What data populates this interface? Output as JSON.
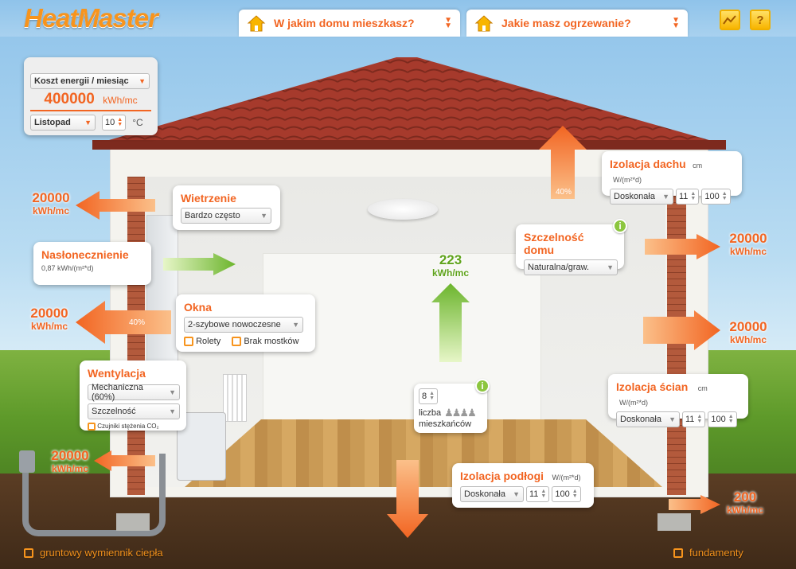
{
  "app": {
    "logo_part1": "Heat",
    "logo_part2": "Master"
  },
  "tabs": [
    {
      "label": "W jakim domu mieszkasz?"
    },
    {
      "label": "Jakie masz ogrzewanie?"
    }
  ],
  "energy": {
    "mode": "Koszt energii / miesiąc",
    "value": "400000",
    "unit": "kWh/mc",
    "month": "Listopad",
    "temp": "10",
    "temp_unit": "°C"
  },
  "ventilation_airing": {
    "title": "Wietrzenie",
    "value": "Bardzo często"
  },
  "insolation": {
    "title": "Nasłonecznienie",
    "value": "0,87 kWh/(m²*d)"
  },
  "windows": {
    "title": "Okna",
    "value": "2-szybowe nowoczesne",
    "opt1": "Rolety",
    "opt2": "Brak mostków"
  },
  "mech_vent": {
    "title": "Wentylacja",
    "type": "Mechaniczna (60%)",
    "tightness": "Szczelność",
    "sensor": "Czujniki stężenia CO₂"
  },
  "airtight": {
    "title": "Szczelność domu",
    "value": "Naturalna/graw."
  },
  "roof": {
    "title": "Izolacja dachu",
    "unit_cm": "cm",
    "unit_w": "W/(m²*d)",
    "quality": "Doskonała",
    "cm": "11",
    "w": "100",
    "loss_pct": "40%"
  },
  "walls": {
    "title": "Izolacja ścian",
    "unit_cm": "cm",
    "unit_w": "W/(m²*d)",
    "quality": "Doskonała",
    "cm": "11",
    "w": "100"
  },
  "floor": {
    "title": "Izolacja podłogi",
    "unit_w": "W/(m²*d)",
    "quality": "Doskonała",
    "cm": "11",
    "w": "100"
  },
  "residents": {
    "count": "8",
    "label1": "liczba",
    "label2": "mieszkańców"
  },
  "flows": {
    "vent_left": {
      "n": "20000",
      "u": "kWh/mc"
    },
    "window_left": {
      "n": "20000",
      "u": "kWh/mc",
      "pct": "40%"
    },
    "ground_left": {
      "n": "20000",
      "u": "kWh/mc"
    },
    "wall_right_1": {
      "n": "20000",
      "u": "kWh/mc"
    },
    "wall_right_2": {
      "n": "20000",
      "u": "kWh/mc"
    },
    "foundation_right": {
      "n": "200",
      "u": "kWh/mc"
    },
    "internal": {
      "n": "223",
      "u": "kWh/mc"
    }
  },
  "bottom": {
    "left": "gruntowy wymiennik ciepła",
    "right": "fundamenty"
  }
}
